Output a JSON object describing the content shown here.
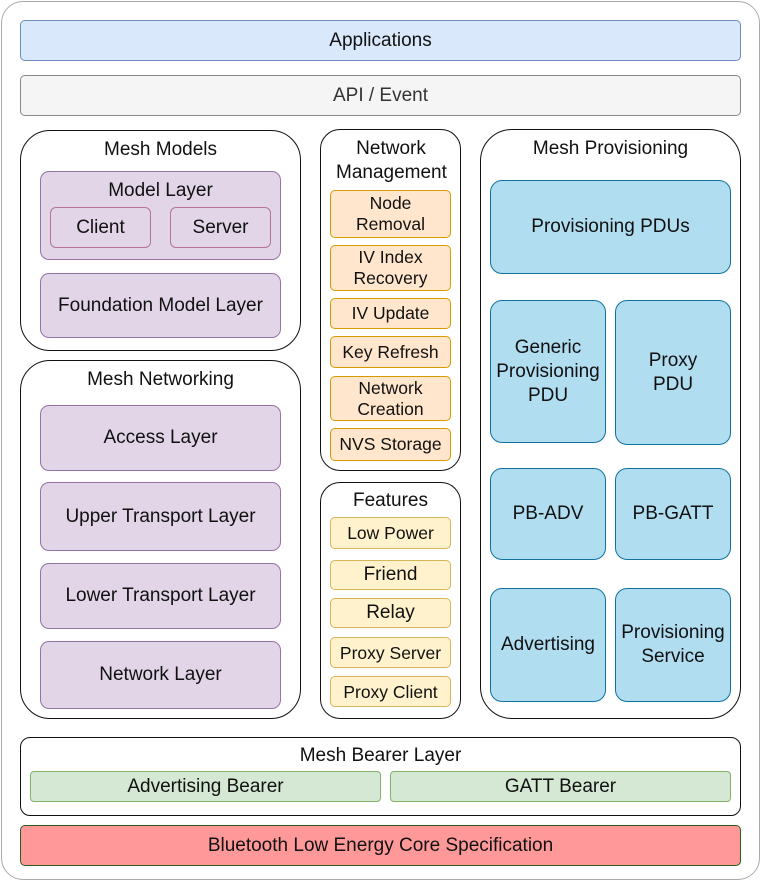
{
  "applications": "Applications",
  "api": "API / Event",
  "mesh_models": {
    "title": "Mesh Models",
    "model_layer": "Model Layer",
    "client": "Client",
    "server": "Server",
    "foundation": "Foundation Model Layer"
  },
  "mesh_networking": {
    "title": "Mesh Networking",
    "layers": [
      "Access Layer",
      "Upper Transport Layer",
      "Lower Transport Layer",
      "Network Layer"
    ]
  },
  "network_management": {
    "title": "Network Management",
    "items": [
      "Node Removal",
      "IV Index Recovery",
      "IV Update",
      "Key Refresh",
      "Network Creation",
      "NVS Storage"
    ]
  },
  "features": {
    "title": "Features",
    "items": [
      "Low Power",
      "Friend",
      "Relay",
      "Proxy Server",
      "Proxy Client"
    ]
  },
  "mesh_provisioning": {
    "title": "Mesh Provisioning",
    "items": [
      "Provisioning PDUs",
      "Generic Provisioning PDU",
      "Proxy PDU",
      "PB-ADV",
      "PB-GATT",
      "Advertising",
      "Provisioning Service"
    ]
  },
  "mesh_bearer": {
    "title": "Mesh Bearer Layer",
    "advertising": "Advertising Bearer",
    "gatt": "GATT Bearer"
  },
  "ble_core": "Bluetooth Low Energy Core Specification",
  "colors": {
    "applications": "#dae8fc",
    "api": "#f5f5f5",
    "models": "#e1d5e7",
    "network_mgmt": "#ffe6cc",
    "features": "#fff2cc",
    "provisioning": "#b1ddf0",
    "bearer": "#d5e8d4",
    "ble_core": "#ff9999"
  }
}
